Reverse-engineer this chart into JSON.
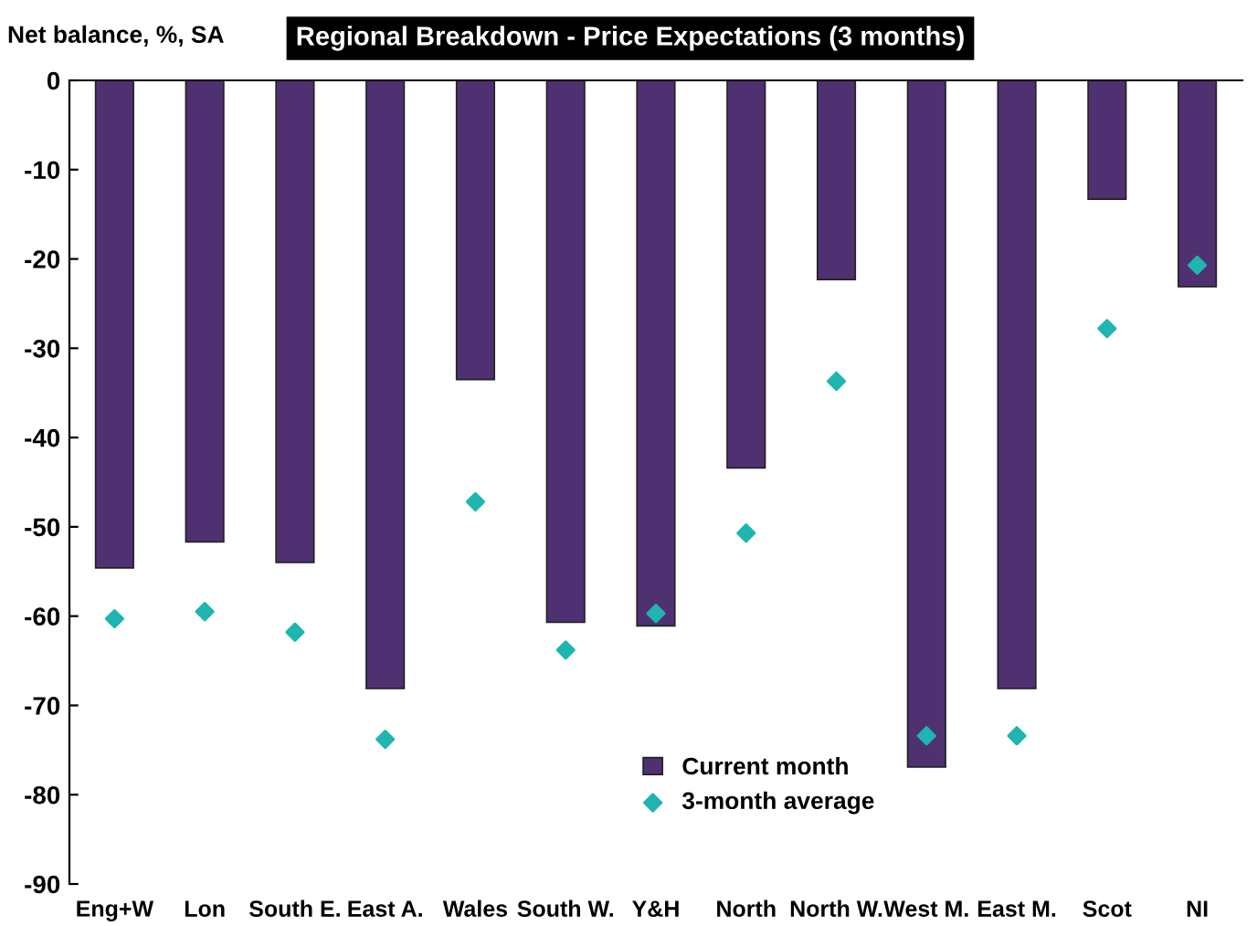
{
  "chart_data": {
    "type": "bar",
    "title": "Regional Breakdown - Price Expectations (3 months)",
    "ylabel": "Net balance, %, SA",
    "categories": [
      "Eng+W",
      "Lon",
      "South E.",
      "East A.",
      "Wales",
      "South W.",
      "Y&H",
      "North",
      "North W.",
      "West M.",
      "East M.",
      "Scot",
      "NI"
    ],
    "series": [
      {
        "name": "Current month",
        "color": "#4f3171",
        "values": [
          -54.6,
          -51.7,
          -54,
          -68.1,
          -33.5,
          -60.7,
          -61.1,
          -43.4,
          -22.3,
          -76.9,
          -68.1,
          -13.3,
          -23.1
        ]
      },
      {
        "name": "3-month average",
        "type": "scatter",
        "marker": "diamond",
        "color": "#1fb5b0",
        "values": [
          -60.3,
          -59.5,
          -61.8,
          -73.8,
          -47.2,
          -63.8,
          -59.7,
          -50.7,
          -33.7,
          -73.4,
          -73.4,
          -27.8,
          -20.7
        ]
      }
    ],
    "ylim": [
      -90,
      0
    ],
    "yticks": [
      -90,
      -80,
      -70,
      -60,
      -50,
      -40,
      -30,
      -20,
      -10,
      0
    ],
    "grid": false,
    "legend": "bottom right"
  }
}
